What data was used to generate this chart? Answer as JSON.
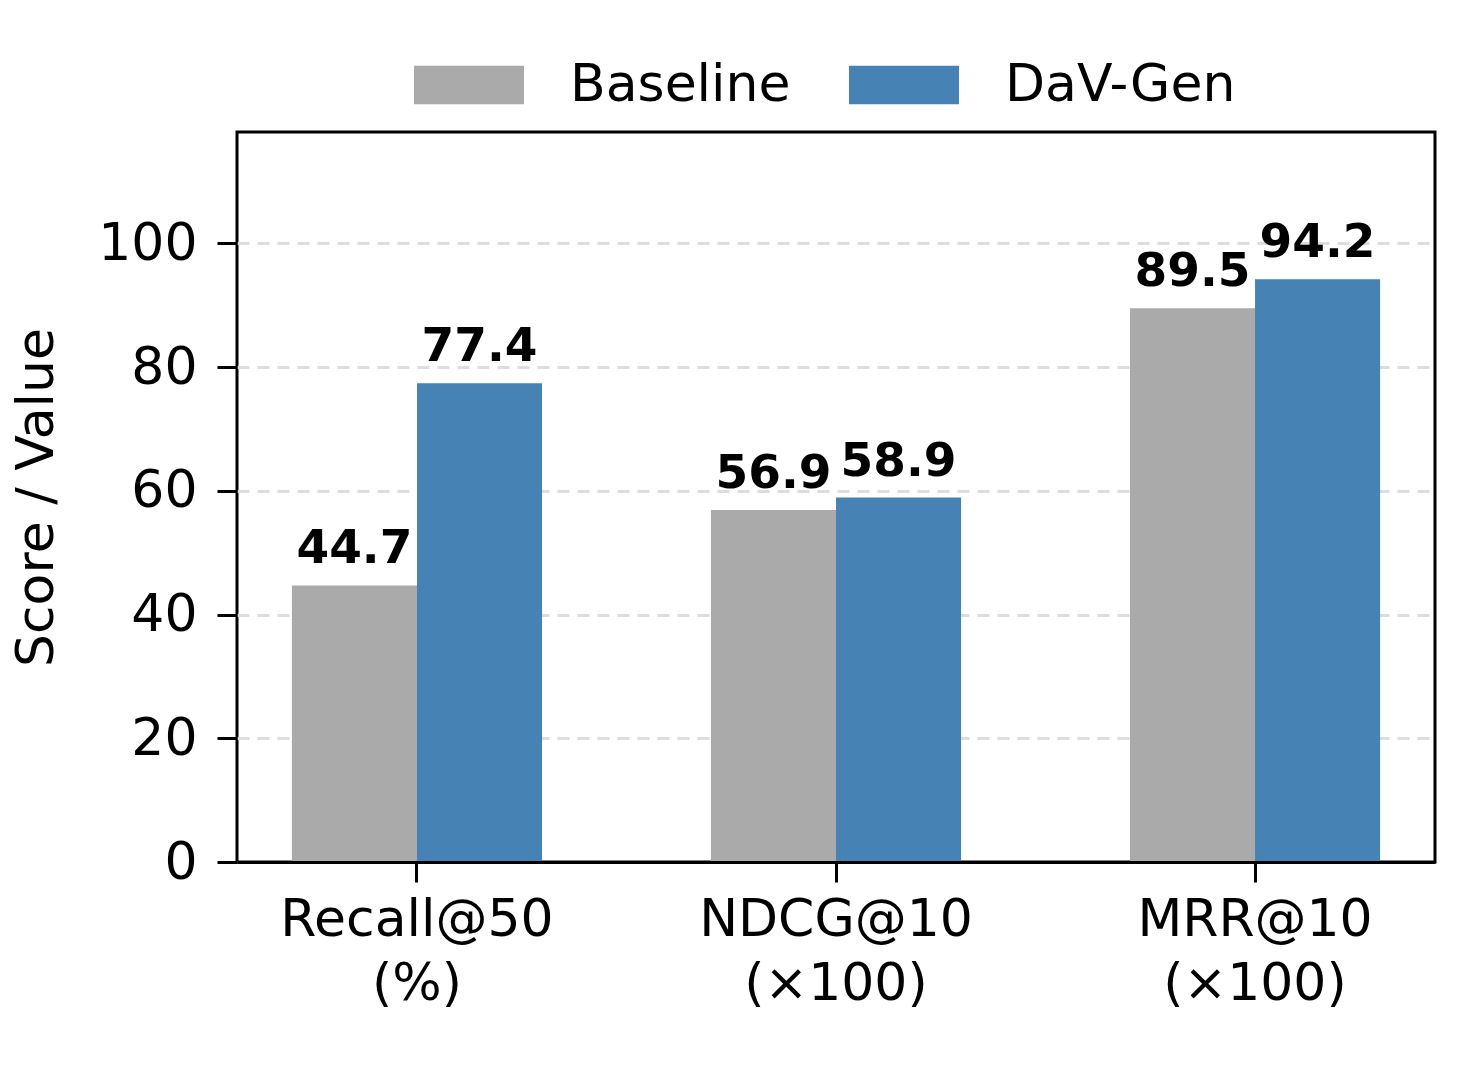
{
  "chart_data": {
    "type": "bar",
    "ylabel": "Score / Value",
    "categories": [
      "Recall@50\n(%)",
      "NDCG@10\n(×100)",
      "MRR@10\n(×100)"
    ],
    "series": [
      {
        "name": "Baseline",
        "color": "#aaaaaa",
        "values": [
          44.7,
          56.9,
          89.5
        ]
      },
      {
        "name": "DaV-Gen",
        "color": "#4682b4",
        "values": [
          77.4,
          58.9,
          94.2
        ]
      }
    ],
    "ylim": [
      0,
      118
    ],
    "yticks": [
      0,
      20,
      40,
      60,
      80,
      100
    ],
    "grid": "y",
    "legend": "top",
    "data_labels": true
  }
}
